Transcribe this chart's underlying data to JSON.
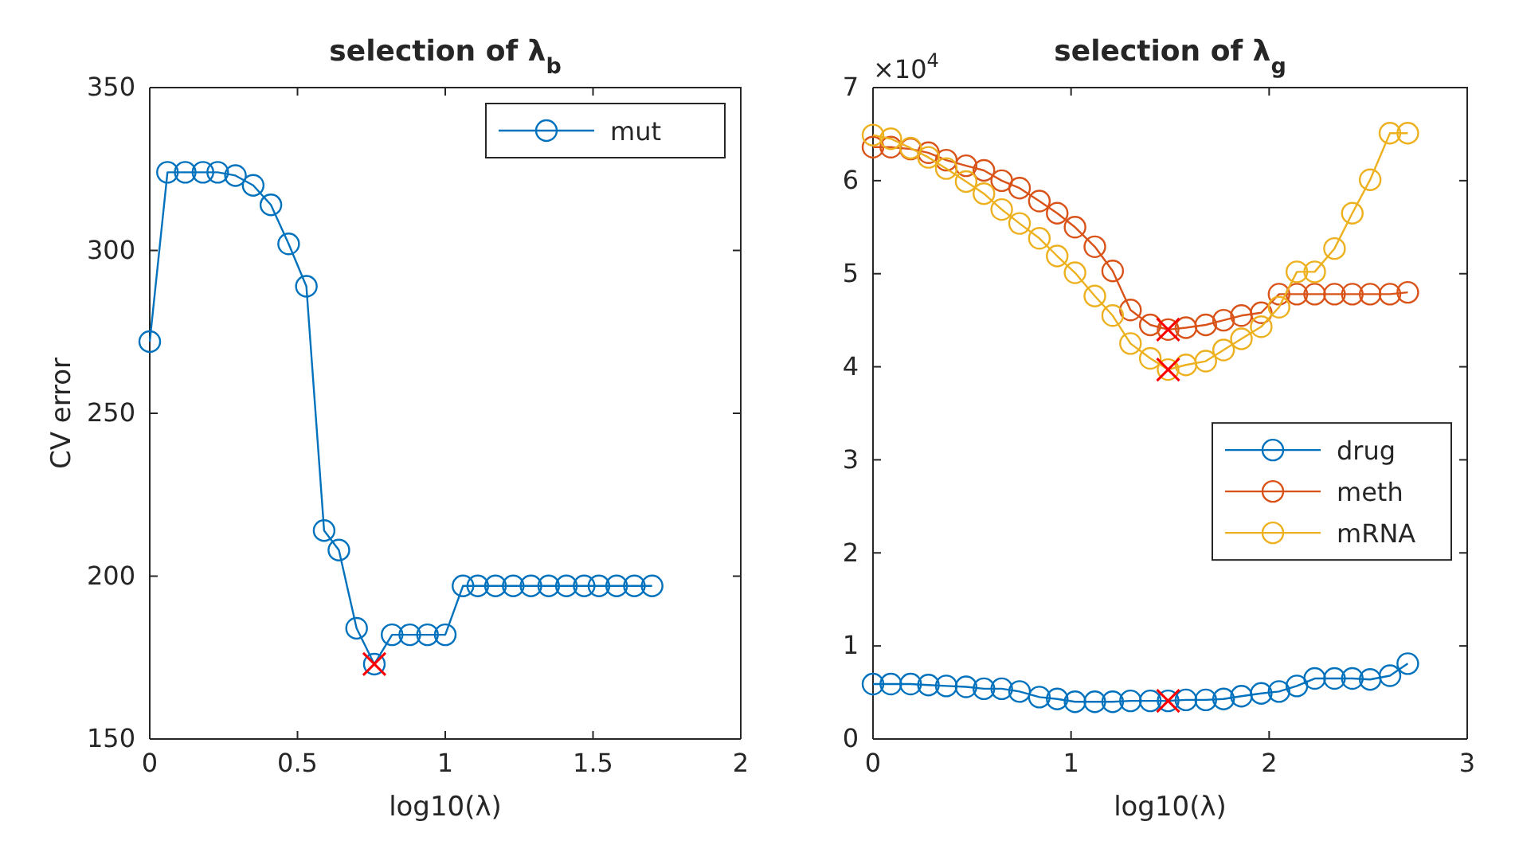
{
  "chart_data": [
    {
      "type": "line",
      "title": "selection of λ$_{b}$",
      "xlabel": "log10(λ)",
      "ylabel": "CV error",
      "xlim": [
        0,
        2
      ],
      "ylim": [
        150,
        350
      ],
      "xticks": [
        0,
        0.5,
        1,
        1.5,
        2
      ],
      "yticks": [
        150,
        200,
        250,
        300,
        350
      ],
      "marker": "circle",
      "legend": "top right",
      "series": [
        {
          "name": "mut",
          "color": "#0072bd",
          "x": [
            0,
            0.06,
            0.12,
            0.18,
            0.23,
            0.29,
            0.35,
            0.41,
            0.47,
            0.53,
            0.59,
            0.64,
            0.7,
            0.76,
            0.82,
            0.88,
            0.94,
            1.0,
            1.06,
            1.11,
            1.17,
            1.23,
            1.29,
            1.35,
            1.41,
            1.47,
            1.52,
            1.58,
            1.64,
            1.7
          ],
          "values": [
            272,
            324,
            324,
            324,
            324,
            323,
            320,
            314,
            302,
            289,
            214,
            208,
            184,
            173,
            182,
            182,
            182,
            182,
            197,
            197,
            197,
            197,
            197,
            197,
            197,
            197,
            197,
            197,
            197,
            197
          ]
        },
        {
          "type": "scatter",
          "marker": "cross",
          "color": "#ff0000",
          "x": [
            0.76
          ],
          "values": [
            173
          ]
        }
      ]
    },
    {
      "type": "line",
      "title": "selection of λ$_{g}$",
      "xlabel": "log10(λ)",
      "xlim": [
        0,
        3
      ],
      "ylim": [
        0,
        7
      ],
      "xticks": [
        0,
        1,
        2,
        3
      ],
      "yticks": [
        0,
        1,
        2,
        3,
        4,
        5,
        6,
        7
      ],
      "marker": "circle",
      "legend": "right",
      "annotations": [
        "×10$^{4}$"
      ],
      "series": [
        {
          "name": "drug",
          "color": "#0072bd",
          "x": [
            0,
            0.09,
            0.19,
            0.28,
            0.37,
            0.47,
            0.56,
            0.65,
            0.74,
            0.84,
            0.93,
            1.02,
            1.12,
            1.21,
            1.3,
            1.4,
            1.49,
            1.58,
            1.68,
            1.77,
            1.86,
            1.96,
            2.05,
            2.14,
            2.23,
            2.33,
            2.42,
            2.51,
            2.61,
            2.7
          ],
          "values": [
            0.59,
            0.59,
            0.59,
            0.58,
            0.57,
            0.56,
            0.54,
            0.54,
            0.51,
            0.45,
            0.43,
            0.4,
            0.4,
            0.4,
            0.41,
            0.41,
            0.41,
            0.42,
            0.42,
            0.43,
            0.46,
            0.49,
            0.51,
            0.57,
            0.65,
            0.65,
            0.65,
            0.64,
            0.68,
            0.81
          ]
        },
        {
          "name": "meth",
          "color": "#d95319",
          "x": [
            0,
            0.09,
            0.19,
            0.28,
            0.37,
            0.47,
            0.56,
            0.65,
            0.74,
            0.84,
            0.93,
            1.02,
            1.12,
            1.21,
            1.3,
            1.4,
            1.49,
            1.58,
            1.68,
            1.77,
            1.86,
            1.96,
            2.05,
            2.14,
            2.23,
            2.33,
            2.42,
            2.51,
            2.61,
            2.7
          ],
          "values": [
            6.36,
            6.36,
            6.34,
            6.3,
            6.22,
            6.16,
            6.11,
            6.0,
            5.92,
            5.78,
            5.65,
            5.5,
            5.29,
            5.03,
            4.61,
            4.45,
            4.4,
            4.42,
            4.45,
            4.5,
            4.55,
            4.58,
            4.78,
            4.78,
            4.78,
            4.78,
            4.78,
            4.78,
            4.78,
            4.8
          ]
        },
        {
          "name": "mRNA",
          "color": "#edb120",
          "x": [
            0,
            0.09,
            0.19,
            0.28,
            0.37,
            0.47,
            0.56,
            0.65,
            0.74,
            0.84,
            0.93,
            1.02,
            1.12,
            1.21,
            1.3,
            1.4,
            1.49,
            1.58,
            1.68,
            1.77,
            1.86,
            1.96,
            2.05,
            2.14,
            2.23,
            2.33,
            2.42,
            2.51,
            2.61,
            2.7
          ],
          "values": [
            6.49,
            6.45,
            6.35,
            6.25,
            6.13,
            5.99,
            5.86,
            5.69,
            5.54,
            5.38,
            5.19,
            5.01,
            4.76,
            4.55,
            4.25,
            4.09,
            3.97,
            4.02,
            4.06,
            4.18,
            4.3,
            4.43,
            4.64,
            5.02,
            5.02,
            5.27,
            5.65,
            6.01,
            6.51,
            6.51
          ]
        },
        {
          "type": "scatter",
          "marker": "cross",
          "color": "#ff0000",
          "x": [
            1.49,
            1.49,
            1.49
          ],
          "values": [
            0.41,
            4.4,
            3.97
          ]
        }
      ]
    }
  ]
}
